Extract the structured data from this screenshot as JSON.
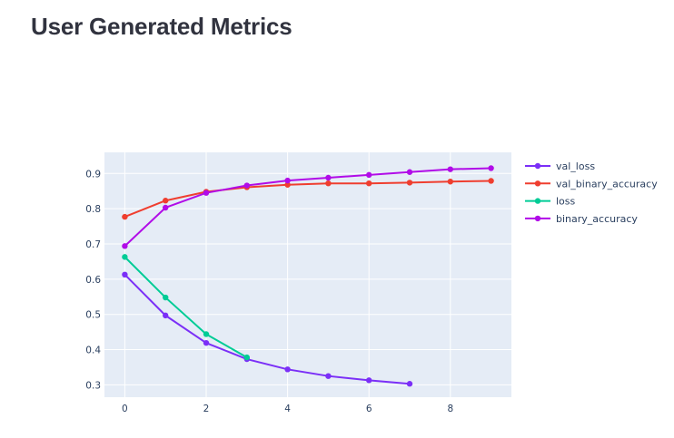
{
  "page": {
    "title": "User Generated Metrics"
  },
  "chart_data": {
    "type": "line",
    "title": "",
    "xlabel": "",
    "ylabel": "",
    "xlim": [
      -0.5,
      9.5
    ],
    "ylim": [
      0.265,
      0.96
    ],
    "x_ticks": [
      0,
      2,
      4,
      6,
      8
    ],
    "y_ticks": [
      0.3,
      0.4,
      0.5,
      0.6,
      0.7,
      0.8,
      0.9
    ],
    "grid": true,
    "background": "#e5ecf6",
    "legend_position": "right",
    "series": [
      {
        "name": "val_loss",
        "color": "#7b2ff7",
        "x": [
          0,
          1,
          2,
          3,
          4,
          5,
          6,
          7
        ],
        "y": [
          0.613,
          0.497,
          0.419,
          0.373,
          0.344,
          0.325,
          0.313,
          0.303
        ]
      },
      {
        "name": "val_binary_accuracy",
        "color": "#ef3e2f",
        "x": [
          0,
          1,
          2,
          3,
          4,
          5,
          6,
          7,
          8,
          9
        ],
        "y": [
          0.777,
          0.823,
          0.848,
          0.861,
          0.868,
          0.872,
          0.872,
          0.874,
          0.877,
          0.879
        ]
      },
      {
        "name": "loss",
        "color": "#00cc96",
        "x": [
          0,
          1,
          2,
          3
        ],
        "y": [
          0.663,
          0.548,
          0.444,
          0.378
        ]
      },
      {
        "name": "binary_accuracy",
        "color": "#b10ce8",
        "x": [
          0,
          1,
          2,
          3,
          4,
          5,
          6,
          7,
          8,
          9
        ],
        "y": [
          0.694,
          0.803,
          0.845,
          0.866,
          0.88,
          0.888,
          0.896,
          0.904,
          0.912,
          0.915
        ]
      }
    ]
  }
}
